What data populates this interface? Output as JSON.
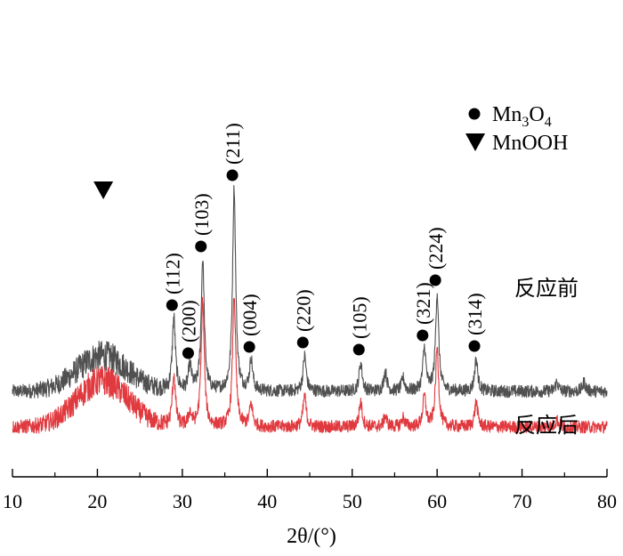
{
  "chart_data": {
    "type": "line",
    "title": "",
    "xlabel": "2θ/(°)",
    "ylabel": "",
    "xlim": [
      10,
      80
    ],
    "x_ticks": [
      10,
      20,
      30,
      40,
      50,
      60,
      70,
      80
    ],
    "y_ticks_shown": false,
    "grid": false,
    "legend": {
      "placement": "top-right",
      "entries": [
        {
          "marker": "circle",
          "text_main": "Mn",
          "sub1": "3",
          "text_mid": "O",
          "sub2": "4"
        },
        {
          "marker": "triangle-down",
          "label": "MnOOH"
        }
      ]
    },
    "series": [
      {
        "name": "反应前",
        "color": "#505050",
        "baseline": 0.4,
        "hump_height": 0.4,
        "peaks": [
          {
            "x": 29.0,
            "height": 0.82
          },
          {
            "x": 30.9,
            "height": 0.28
          },
          {
            "x": 32.4,
            "height": 1.48
          },
          {
            "x": 36.1,
            "height": 2.28
          },
          {
            "x": 38.1,
            "height": 0.35
          },
          {
            "x": 44.4,
            "height": 0.4
          },
          {
            "x": 51.0,
            "height": 0.32
          },
          {
            "x": 53.9,
            "height": 0.22
          },
          {
            "x": 56.0,
            "height": 0.14
          },
          {
            "x": 58.5,
            "height": 0.48
          },
          {
            "x": 60.0,
            "height": 1.1
          },
          {
            "x": 64.6,
            "height": 0.36
          },
          {
            "x": 74.1,
            "height": 0.1
          },
          {
            "x": 77.3,
            "height": 0.1
          }
        ]
      },
      {
        "name": "反应后",
        "color": "#e0393e",
        "baseline": 0.0,
        "hump_height": 0.52,
        "peaks": [
          {
            "x": 29.0,
            "height": 0.58
          },
          {
            "x": 30.9,
            "height": 0.15
          },
          {
            "x": 32.4,
            "height": 1.42
          },
          {
            "x": 36.1,
            "height": 1.48
          },
          {
            "x": 38.1,
            "height": 0.25
          },
          {
            "x": 44.4,
            "height": 0.35
          },
          {
            "x": 51.0,
            "height": 0.28
          },
          {
            "x": 53.9,
            "height": 0.12
          },
          {
            "x": 56.0,
            "height": 0.1
          },
          {
            "x": 58.5,
            "height": 0.34
          },
          {
            "x": 60.0,
            "height": 0.88
          },
          {
            "x": 64.6,
            "height": 0.28
          },
          {
            "x": 74.1,
            "height": 0.08
          }
        ]
      }
    ],
    "peak_annotations": [
      {
        "label": "(112)",
        "x": 29.0,
        "marker": "circle"
      },
      {
        "label": "(200)",
        "x": 30.9,
        "marker": "circle"
      },
      {
        "label": "(103)",
        "x": 32.4,
        "marker": "circle"
      },
      {
        "label": "(211)",
        "x": 36.1,
        "marker": "circle"
      },
      {
        "label": "(004)",
        "x": 38.1,
        "marker": "circle"
      },
      {
        "label": "(220)",
        "x": 44.4,
        "marker": "circle"
      },
      {
        "label": "(105)",
        "x": 51.0,
        "marker": "circle"
      },
      {
        "label": "(321)",
        "x": 58.5,
        "marker": "circle"
      },
      {
        "label": "(224)",
        "x": 60.0,
        "marker": "circle"
      },
      {
        "label": "(314)",
        "x": 64.6,
        "marker": "circle"
      }
    ],
    "triangle_annotation": {
      "x": 20.7,
      "marker": "triangle-down"
    }
  }
}
